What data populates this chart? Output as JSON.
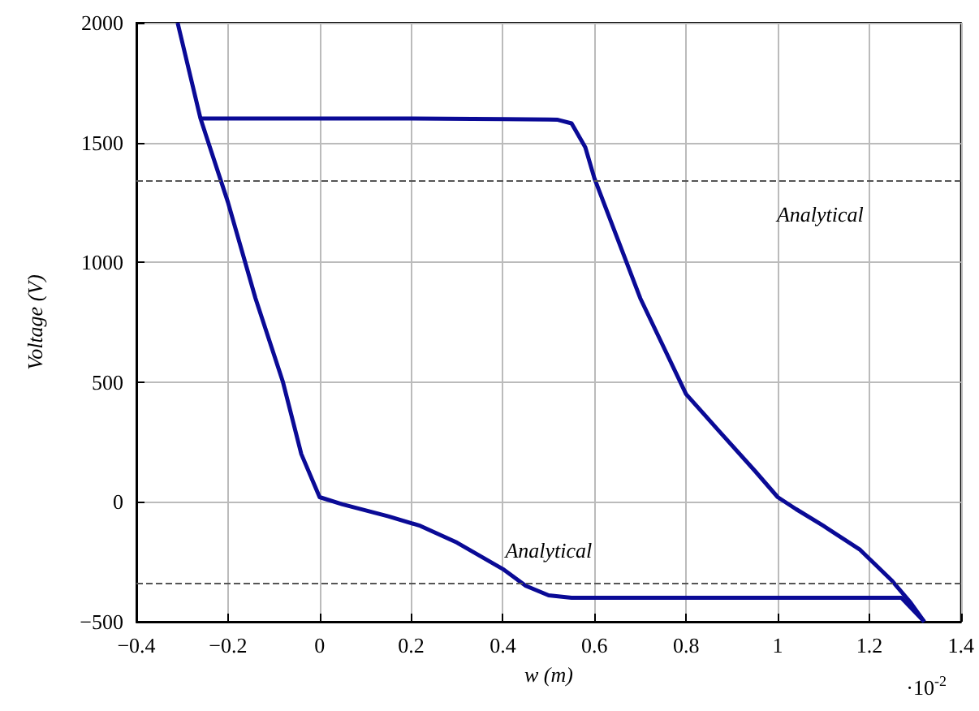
{
  "chart_data": {
    "type": "line",
    "xlabel": "w (m)",
    "ylabel": "Voltage (V)",
    "annotations": [
      "·10$^{-2}$"
    ],
    "xlim": [
      -0.4,
      1.4
    ],
    "xticks": [
      -0.4,
      -0.2,
      0,
      0.2,
      0.4,
      0.6,
      0.8,
      1,
      1.2,
      1.4
    ],
    "ylim": [
      -500,
      2000
    ],
    "yticks": [
      -500,
      0,
      500,
      1000,
      1500,
      2000
    ],
    "grid": true,
    "marker": "none",
    "line_style": "solid",
    "series": [
      {
        "color": "#0a0a96",
        "x": [
          -0.26,
          0,
          0.2,
          0.4,
          0.5,
          0.52,
          0.55,
          0.58,
          0.6,
          0.65,
          0.7,
          0.75,
          0.8,
          0.87,
          0.95,
          1.0,
          1.04,
          1.1,
          1.18,
          1.25,
          1.29,
          1.32
        ],
        "values": [
          1600,
          1600,
          1600,
          1598,
          1596,
          1595,
          1580,
          1480,
          1350,
          1100,
          850,
          650,
          450,
          300,
          130,
          20,
          -30,
          -100,
          -200,
          -330,
          -420,
          -500
        ]
      },
      {
        "color": "#0a0a96",
        "x": [
          -0.31,
          -0.26,
          -0.2,
          -0.14,
          -0.08,
          -0.04,
          0,
          0.05,
          0.15,
          0.22,
          0.3,
          0.4,
          0.45,
          0.5,
          0.55,
          0.8,
          1.0,
          1.27,
          1.32
        ],
        "values": [
          2000,
          1600,
          1250,
          850,
          500,
          200,
          20,
          -10,
          -60,
          -100,
          -170,
          -280,
          -350,
          -390,
          -400,
          -400,
          -400,
          -400,
          -500
        ]
      }
    ],
    "ref_lines": [
      {
        "axis": "y",
        "value": 1340,
        "label": "Analytical",
        "color": "#555555",
        "line_style": "dashed"
      },
      {
        "axis": "y",
        "value": -340,
        "label": "Analytical",
        "color": "#555555",
        "line_style": "dashed"
      }
    ]
  }
}
